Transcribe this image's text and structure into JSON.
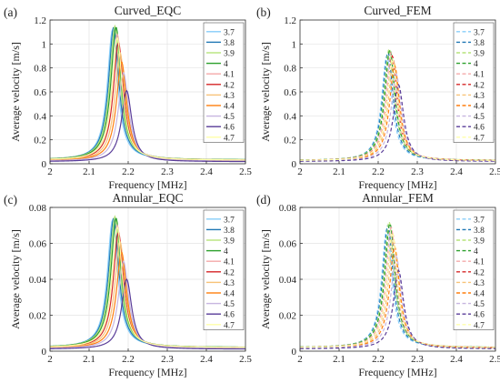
{
  "colors": [
    "#87cefa",
    "#1f77b4",
    "#b6e37a",
    "#2ca02c",
    "#f4a9a9",
    "#d62728",
    "#f8c378",
    "#ff7f0e",
    "#c7b6e0",
    "#5a3d99",
    "#ffffaa"
  ],
  "chart_data": [
    {
      "type": "line",
      "panel_label": "(a)",
      "title": "Curved_EQC",
      "xlabel": "Frequency [MHz]",
      "ylabel": "Average velocity [m/s]",
      "xlim": [
        2,
        2.5
      ],
      "ylim": [
        0,
        1.2
      ],
      "xticks": [
        "2",
        "2.1",
        "2.2",
        "2.3",
        "2.4",
        "2.5"
      ],
      "yticks": [
        "0",
        "0.2",
        "0.4",
        "0.6",
        "0.8",
        "1",
        "1.2"
      ],
      "grid": true,
      "legend_position": "top-right",
      "line_style": "solid",
      "series": [
        {
          "name": "3.7",
          "peak_x": 2.16,
          "peak_y": 1.12
        },
        {
          "name": "3.8",
          "peak_x": 2.163,
          "peak_y": 1.14
        },
        {
          "name": "3.9",
          "peak_x": 2.166,
          "peak_y": 1.15
        },
        {
          "name": "4",
          "peak_x": 2.169,
          "peak_y": 1.14
        },
        {
          "name": "4.1",
          "peak_x": 2.172,
          "peak_y": 1.08
        },
        {
          "name": "4.2",
          "peak_x": 2.175,
          "peak_y": 1.01
        },
        {
          "name": "4.3",
          "peak_x": 2.179,
          "peak_y": 0.93
        },
        {
          "name": "4.4",
          "peak_x": 2.183,
          "peak_y": 0.85
        },
        {
          "name": "4.5",
          "peak_x": 2.188,
          "peak_y": 0.76
        },
        {
          "name": "4.6",
          "peak_x": 2.196,
          "peak_y": 0.61
        },
        {
          "name": "4.7",
          "peak_x": 2.172,
          "peak_y": 1.05
        }
      ]
    },
    {
      "type": "line",
      "panel_label": "(b)",
      "title": "Curved_FEM",
      "xlabel": "Frequency [MHz]",
      "ylabel": "Average velocity [m/s]",
      "xlim": [
        2,
        2.5
      ],
      "ylim": [
        0,
        1.2
      ],
      "xticks": [
        "2",
        "2.1",
        "2.2",
        "2.3",
        "2.4",
        "2.5"
      ],
      "yticks": [
        "0",
        "0.2",
        "0.4",
        "0.6",
        "0.8",
        "1",
        "1.2"
      ],
      "grid": true,
      "legend_position": "top-right",
      "line_style": "dashed",
      "series": [
        {
          "name": "3.7",
          "peak_x": 2.222,
          "peak_y": 0.9
        },
        {
          "name": "3.8",
          "peak_x": 2.225,
          "peak_y": 0.93
        },
        {
          "name": "3.9",
          "peak_x": 2.228,
          "peak_y": 0.96
        },
        {
          "name": "4",
          "peak_x": 2.23,
          "peak_y": 0.95
        },
        {
          "name": "4.1",
          "peak_x": 2.233,
          "peak_y": 0.93
        },
        {
          "name": "4.2",
          "peak_x": 2.236,
          "peak_y": 0.9
        },
        {
          "name": "4.3",
          "peak_x": 2.239,
          "peak_y": 0.86
        },
        {
          "name": "4.4",
          "peak_x": 2.242,
          "peak_y": 0.82
        },
        {
          "name": "4.5",
          "peak_x": 2.246,
          "peak_y": 0.75
        },
        {
          "name": "4.6",
          "peak_x": 2.252,
          "peak_y": 0.66
        },
        {
          "name": "4.7",
          "peak_x": 2.236,
          "peak_y": 0.88
        }
      ]
    },
    {
      "type": "line",
      "panel_label": "(c)",
      "title": "Annular_EQC",
      "xlabel": "Frequency [MHz]",
      "ylabel": "Average velocity [m/s]",
      "xlim": [
        2,
        2.5
      ],
      "ylim": [
        0,
        0.08
      ],
      "xticks": [
        "2",
        "2.1",
        "2.2",
        "2.3",
        "2.4",
        "2.5"
      ],
      "yticks": [
        "0",
        "0.02",
        "0.04",
        "0.06",
        "0.08"
      ],
      "grid": true,
      "legend_position": "top-right",
      "line_style": "solid",
      "series": [
        {
          "name": "3.7",
          "peak_x": 2.16,
          "peak_y": 0.073
        },
        {
          "name": "3.8",
          "peak_x": 2.163,
          "peak_y": 0.074
        },
        {
          "name": "3.9",
          "peak_x": 2.166,
          "peak_y": 0.075
        },
        {
          "name": "4",
          "peak_x": 2.169,
          "peak_y": 0.074
        },
        {
          "name": "4.1",
          "peak_x": 2.172,
          "peak_y": 0.07
        },
        {
          "name": "4.2",
          "peak_x": 2.175,
          "peak_y": 0.066
        },
        {
          "name": "4.3",
          "peak_x": 2.179,
          "peak_y": 0.061
        },
        {
          "name": "4.4",
          "peak_x": 2.183,
          "peak_y": 0.055
        },
        {
          "name": "4.5",
          "peak_x": 2.188,
          "peak_y": 0.05
        },
        {
          "name": "4.6",
          "peak_x": 2.196,
          "peak_y": 0.04
        },
        {
          "name": "4.7",
          "peak_x": 2.172,
          "peak_y": 0.069
        }
      ]
    },
    {
      "type": "line",
      "panel_label": "(d)",
      "title": "Annular_FEM",
      "xlabel": "Frequency [MHz]",
      "ylabel": "Average velocity [m/s]",
      "xlim": [
        2,
        2.5
      ],
      "ylim": [
        0,
        0.08
      ],
      "xticks": [
        "2",
        "2.1",
        "2.2",
        "2.3",
        "2.4",
        "2.5"
      ],
      "yticks": [
        "0",
        "0.02",
        "0.04",
        "0.06",
        "0.08"
      ],
      "grid": true,
      "legend_position": "top-right",
      "line_style": "dashed",
      "series": [
        {
          "name": "3.7",
          "peak_x": 2.222,
          "peak_y": 0.068
        },
        {
          "name": "3.8",
          "peak_x": 2.225,
          "peak_y": 0.07
        },
        {
          "name": "3.9",
          "peak_x": 2.228,
          "peak_y": 0.072
        },
        {
          "name": "4",
          "peak_x": 2.23,
          "peak_y": 0.071
        },
        {
          "name": "4.1",
          "peak_x": 2.233,
          "peak_y": 0.069
        },
        {
          "name": "4.2",
          "peak_x": 2.236,
          "peak_y": 0.066
        },
        {
          "name": "4.3",
          "peak_x": 2.239,
          "peak_y": 0.062
        },
        {
          "name": "4.4",
          "peak_x": 2.242,
          "peak_y": 0.058
        },
        {
          "name": "4.5",
          "peak_x": 2.246,
          "peak_y": 0.053
        },
        {
          "name": "4.6",
          "peak_x": 2.252,
          "peak_y": 0.045
        },
        {
          "name": "4.7",
          "peak_x": 2.236,
          "peak_y": 0.066
        }
      ]
    }
  ]
}
